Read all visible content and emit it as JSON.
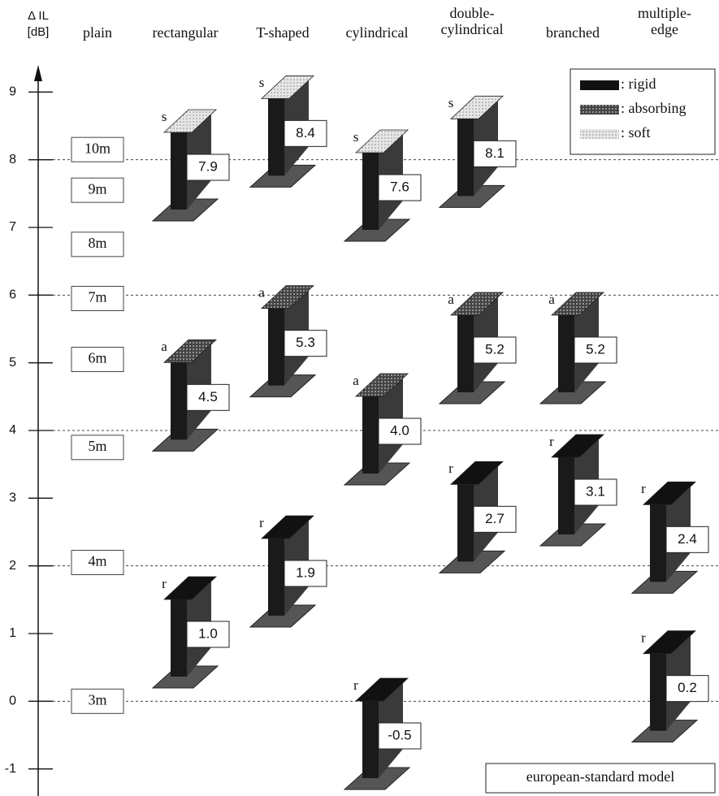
{
  "chart_data": {
    "type": "barrier-glyph",
    "y_label": [
      "Δ IL",
      "[dB]"
    ],
    "ylim": [
      -1.4,
      9.4
    ],
    "yticks": [
      -1,
      0,
      1,
      2,
      3,
      4,
      5,
      6,
      7,
      8,
      9
    ],
    "reference_lines": [
      0,
      2,
      4,
      6,
      8
    ],
    "categories": [
      [
        "plain"
      ],
      [
        "rectangular"
      ],
      [
        "T-shaped"
      ],
      [
        "cylindrical"
      ],
      [
        "double-",
        "cylindrical"
      ],
      [
        "branched"
      ],
      [
        "multiple-",
        "edge"
      ]
    ],
    "height_labels": [
      {
        "label": "10m",
        "value": 8.15
      },
      {
        "label": "9m",
        "value": 7.55
      },
      {
        "label": "8m",
        "value": 6.75
      },
      {
        "label": "7m",
        "value": 5.95
      },
      {
        "label": "6m",
        "value": 5.05
      },
      {
        "label": "5m",
        "value": 3.75
      },
      {
        "label": "4m",
        "value": 2.05
      },
      {
        "label": "3m",
        "value": 0.0
      }
    ],
    "legend_position": "upper right",
    "series": [
      {
        "name": ": rigid",
        "letter": "r",
        "color": "#111111",
        "points": [
          {
            "category": 1,
            "value": 1.0,
            "label": "1.0"
          },
          {
            "category": 2,
            "value": 1.9,
            "label": "1.9"
          },
          {
            "category": 3,
            "value": -0.5,
            "label": "-0.5"
          },
          {
            "category": 4,
            "value": 2.7,
            "label": "2.7"
          },
          {
            "category": 5,
            "value": 3.1,
            "label": "3.1"
          },
          {
            "category": 6,
            "value": 2.4,
            "label": "2.4"
          },
          {
            "category": 6,
            "value": 0.2,
            "label": "0.2"
          }
        ]
      },
      {
        "name": ": absorbing",
        "letter": "a",
        "color": "#555555",
        "points": [
          {
            "category": 1,
            "value": 4.5,
            "label": "4.5"
          },
          {
            "category": 2,
            "value": 5.3,
            "label": "5.3"
          },
          {
            "category": 3,
            "value": 4.0,
            "label": "4.0"
          },
          {
            "category": 4,
            "value": 5.2,
            "label": "5.2"
          },
          {
            "category": 5,
            "value": 5.2,
            "label": "5.2"
          }
        ]
      },
      {
        "name": ": soft",
        "letter": "s",
        "color": "#dddddd",
        "points": [
          {
            "category": 1,
            "value": 7.9,
            "label": "7.9"
          },
          {
            "category": 2,
            "value": 8.4,
            "label": "8.4"
          },
          {
            "category": 3,
            "value": 7.6,
            "label": "7.6"
          },
          {
            "category": 4,
            "value": 8.1,
            "label": "8.1"
          }
        ]
      }
    ],
    "annotation": "european-standard model"
  }
}
